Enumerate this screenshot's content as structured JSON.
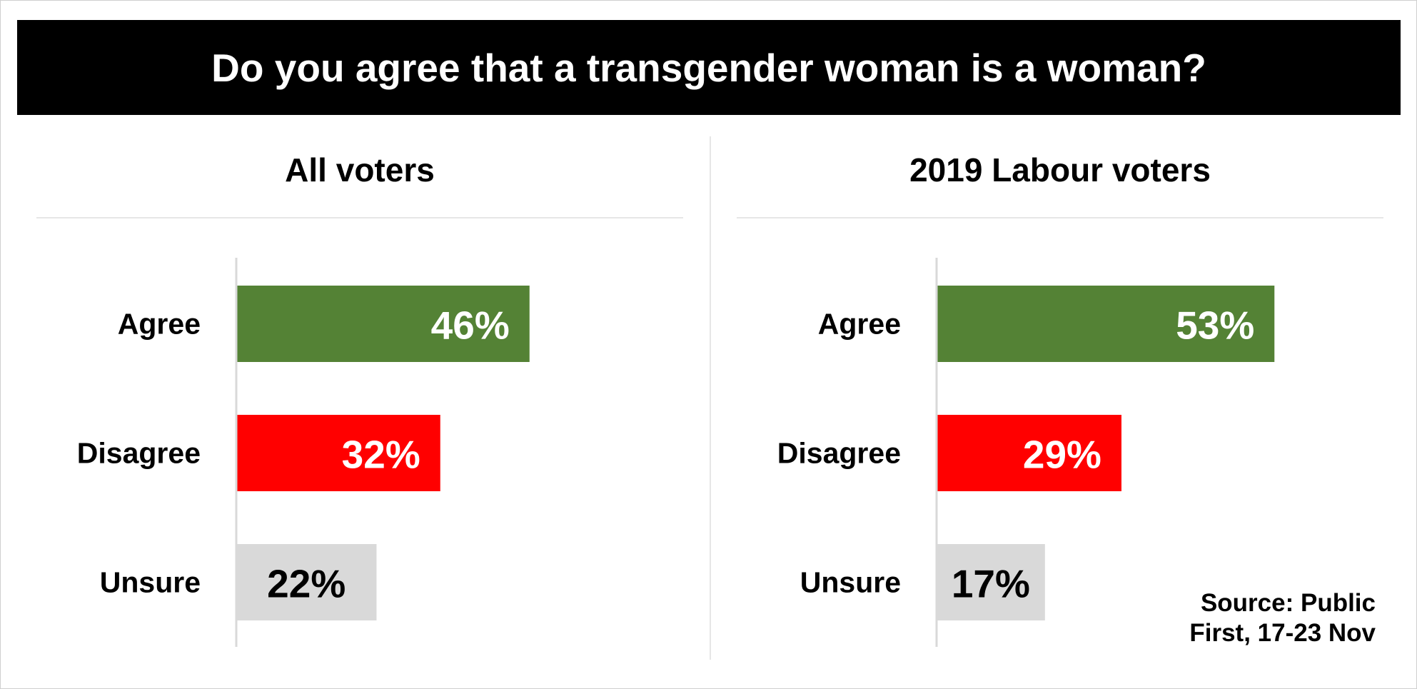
{
  "title": "Do you agree that a transgender woman is a woman?",
  "source": [
    "Source: Public",
    "First, 17-23 Nov"
  ],
  "colors": {
    "Agree": "#548235",
    "Disagree": "#ff0000",
    "Unsure": "#d9d9d9"
  },
  "chart_data": [
    {
      "type": "bar",
      "orientation": "horizontal",
      "title": "All voters",
      "categories": [
        "Agree",
        "Disagree",
        "Unsure"
      ],
      "values": [
        46,
        32,
        22
      ],
      "labels": [
        "46%",
        "32%",
        "22%"
      ],
      "unit": "%",
      "xlim": [
        0,
        100
      ]
    },
    {
      "type": "bar",
      "orientation": "horizontal",
      "title": "2019 Labour voters",
      "categories": [
        "Agree",
        "Disagree",
        "Unsure"
      ],
      "values": [
        53,
        29,
        17
      ],
      "labels": [
        "53%",
        "29%",
        "17%"
      ],
      "unit": "%",
      "xlim": [
        0,
        100
      ]
    }
  ]
}
